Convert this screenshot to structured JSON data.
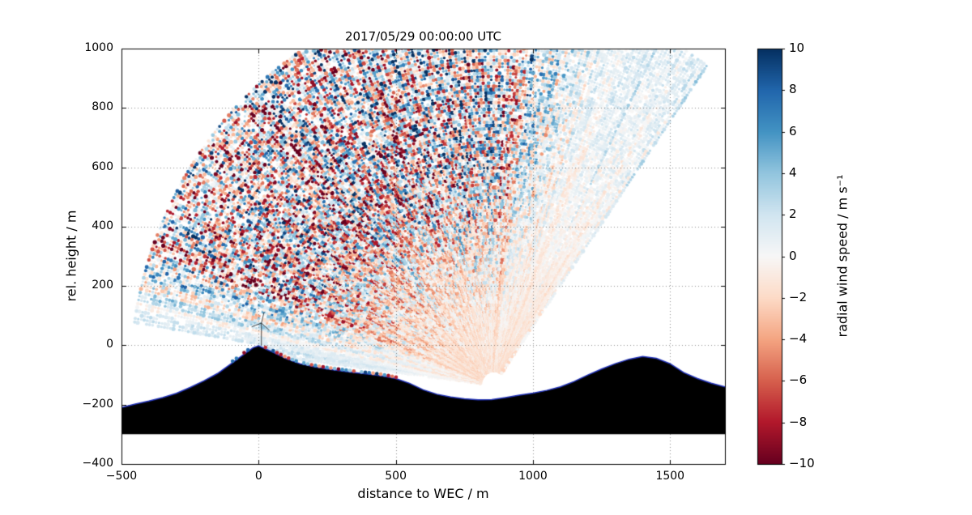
{
  "chart_data": {
    "type": "scatter",
    "title": "2017/05/29 00:00:00 UTC",
    "xlabel": "distance to WEC / m",
    "ylabel": "rel. height / m",
    "xlim": [
      -500,
      1700
    ],
    "ylim": [
      -400,
      1000
    ],
    "grid": "dotted",
    "background": "#ffffff",
    "xticks": [
      {
        "v": -500,
        "label": "−500"
      },
      {
        "v": 0,
        "label": "0"
      },
      {
        "v": 500,
        "label": "500"
      },
      {
        "v": 1000,
        "label": "1000"
      },
      {
        "v": 1500,
        "label": "1500"
      }
    ],
    "yticks": [
      {
        "v": -400,
        "label": "−400"
      },
      {
        "v": -200,
        "label": "−200"
      },
      {
        "v": 0,
        "label": "0"
      },
      {
        "v": 200,
        "label": "200"
      },
      {
        "v": 400,
        "label": "400"
      },
      {
        "v": 600,
        "label": "600"
      },
      {
        "v": 800,
        "label": "800"
      },
      {
        "v": 1000,
        "label": "1000"
      }
    ],
    "colorbar": {
      "label": "radial wind speed / m s⁻¹",
      "min": -10,
      "max": 10,
      "ticks": [
        {
          "v": 10,
          "label": "10"
        },
        {
          "v": 8,
          "label": "8"
        },
        {
          "v": 6,
          "label": "6"
        },
        {
          "v": 4,
          "label": "4"
        },
        {
          "v": 2,
          "label": "2"
        },
        {
          "v": 0,
          "label": "0"
        },
        {
          "v": -2,
          "label": "−2"
        },
        {
          "v": -4,
          "label": "−4"
        },
        {
          "v": -6,
          "label": "−6"
        },
        {
          "v": -8,
          "label": "−8"
        },
        {
          "v": -10,
          "label": "−10"
        }
      ],
      "colormap": "RdBu",
      "stops": [
        {
          "pos": 0.0,
          "color": "#67001f"
        },
        {
          "pos": 0.1,
          "color": "#b2182b"
        },
        {
          "pos": 0.2,
          "color": "#d6604d"
        },
        {
          "pos": 0.3,
          "color": "#f4a582"
        },
        {
          "pos": 0.4,
          "color": "#fddbc7"
        },
        {
          "pos": 0.5,
          "color": "#f7f7f7"
        },
        {
          "pos": 0.6,
          "color": "#d1e5f0"
        },
        {
          "pos": 0.7,
          "color": "#92c5de"
        },
        {
          "pos": 0.8,
          "color": "#4393c3"
        },
        {
          "pos": 0.9,
          "color": "#2166ac"
        },
        {
          "pos": 1.0,
          "color": "#053061"
        }
      ]
    },
    "scan": {
      "description": "Lidar RHI fan of radial wind speed measurements; apex near terrain dip, rays fanning up and to the left; values noisy (full ±10 range) in far/left sector, smooth pale red near apex, pale blue along right edge and along terrain-following low rays",
      "apex": [
        857,
        -134
      ],
      "r_min": 50,
      "r_max": 1330,
      "angle_min_deg": 54,
      "angle_max_deg": 173,
      "ray_step_deg": 0.55,
      "gate_step_m": 11,
      "drop_fraction": 0.15,
      "seed": 42
    },
    "terrain": {
      "fill": "#000000",
      "edge": "#2233bb",
      "base": -300,
      "profile": [
        [
          -500,
          -210
        ],
        [
          -450,
          -198
        ],
        [
          -400,
          -188
        ],
        [
          -350,
          -176
        ],
        [
          -300,
          -162
        ],
        [
          -250,
          -142
        ],
        [
          -200,
          -120
        ],
        [
          -150,
          -95
        ],
        [
          -100,
          -62
        ],
        [
          -50,
          -28
        ],
        [
          -20,
          -8
        ],
        [
          0,
          -2
        ],
        [
          20,
          -10
        ],
        [
          50,
          -22
        ],
        [
          100,
          -45
        ],
        [
          150,
          -62
        ],
        [
          200,
          -72
        ],
        [
          250,
          -80
        ],
        [
          300,
          -86
        ],
        [
          350,
          -92
        ],
        [
          400,
          -97
        ],
        [
          450,
          -103
        ],
        [
          500,
          -112
        ],
        [
          550,
          -128
        ],
        [
          600,
          -150
        ],
        [
          650,
          -165
        ],
        [
          700,
          -174
        ],
        [
          750,
          -180
        ],
        [
          800,
          -184
        ],
        [
          850,
          -183
        ],
        [
          900,
          -176
        ],
        [
          950,
          -168
        ],
        [
          1000,
          -161
        ],
        [
          1050,
          -152
        ],
        [
          1100,
          -140
        ],
        [
          1150,
          -122
        ],
        [
          1200,
          -100
        ],
        [
          1250,
          -80
        ],
        [
          1300,
          -62
        ],
        [
          1350,
          -47
        ],
        [
          1400,
          -38
        ],
        [
          1450,
          -44
        ],
        [
          1500,
          -62
        ],
        [
          1550,
          -92
        ],
        [
          1600,
          -112
        ],
        [
          1650,
          -128
        ],
        [
          1700,
          -140
        ]
      ]
    },
    "surface_echoes": {
      "seed": 11,
      "offset_m": 5,
      "step_m": 14,
      "ranges": [
        [
          -95,
          -25
        ],
        [
          25,
          555
        ]
      ]
    },
    "wec_marker": {
      "x": 10,
      "base_height": 0,
      "hub_height": 75,
      "blade_len_m": 38
    }
  }
}
